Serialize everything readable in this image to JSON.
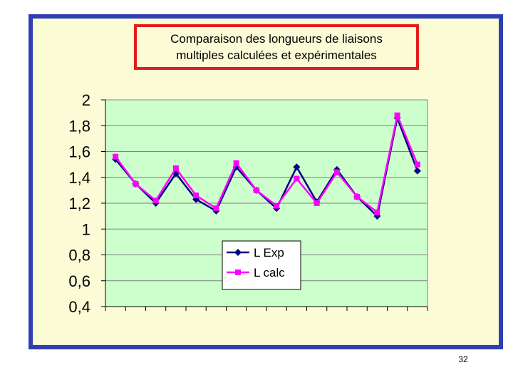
{
  "chart_data": {
    "type": "line",
    "title_lines": [
      "Comparaison des longueurs de liaisons",
      "multiples calculées et expérimentales"
    ],
    "y_tick_labels": [
      "2",
      "1,8",
      "1,6",
      "1,4",
      "1,2",
      "1",
      "0,8",
      "0,6",
      "0,4"
    ],
    "y_ticks": [
      2,
      1.8,
      1.6,
      1.4,
      1.2,
      1,
      0.8,
      0.6,
      0.4
    ],
    "ylim": [
      0.4,
      2
    ],
    "x": [
      1,
      2,
      3,
      4,
      5,
      6,
      7,
      8,
      9,
      10,
      11,
      12,
      13,
      14,
      15,
      16
    ],
    "xlim": [
      0.5,
      16.5
    ],
    "grid": "horizontal",
    "legend_position": "center",
    "series": [
      {
        "name": "L Exp",
        "values": [
          1.54,
          1.35,
          1.2,
          1.43,
          1.23,
          1.14,
          1.48,
          1.3,
          1.16,
          1.48,
          1.21,
          1.46,
          1.25,
          1.1,
          1.86,
          1.45
        ],
        "color": "#000080",
        "marker": "diamond"
      },
      {
        "name": "L calc",
        "values": [
          1.56,
          1.35,
          1.22,
          1.47,
          1.26,
          1.16,
          1.51,
          1.3,
          1.18,
          1.39,
          1.2,
          1.44,
          1.25,
          1.13,
          1.88,
          1.5
        ],
        "color": "#ff00ff",
        "marker": "square"
      }
    ]
  },
  "colors": {
    "frame_border": "#2f3fb2",
    "frame_background": "#fbfbd6",
    "plot_background": "#ccffcc",
    "title_border": "#e21d1d"
  },
  "footer": {
    "page_number": "32"
  }
}
